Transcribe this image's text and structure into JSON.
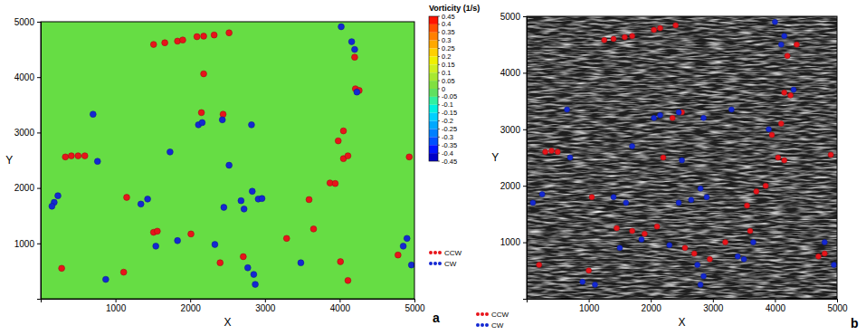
{
  "chart_data": [
    {
      "type": "scatter",
      "xlabel": "X",
      "ylabel": "Y",
      "xlim": [
        0,
        5000
      ],
      "ylim": [
        0,
        5000
      ],
      "xticks": [
        1000,
        2000,
        3000,
        4000,
        5000
      ],
      "yticks": [
        1000,
        2000,
        3000,
        4000,
        5000
      ],
      "legend": "right",
      "annotations": [
        "a"
      ],
      "colorbar": {
        "title": "Vorticity (1/s)",
        "range": [
          -0.45,
          0.45
        ],
        "ticks": [
          0.45,
          0.4,
          0.35,
          0.3,
          0.25,
          0.2,
          0.15,
          0.1,
          0.05,
          0,
          -0.05,
          -0.1,
          -0.15,
          -0.2,
          -0.25,
          -0.3,
          -0.35,
          -0.4,
          -0.45
        ],
        "colors": [
          "#ff1400",
          "#ff5000",
          "#ff8000",
          "#ffa800",
          "#ffd000",
          "#f0f000",
          "#d0f020",
          "#a8e830",
          "#80e040",
          "#60e060",
          "#30f0a0",
          "#00f0e0",
          "#00d0ff",
          "#00a8ff",
          "#0080ff",
          "#0050ff",
          "#0014ff",
          "#0000c8"
        ]
      },
      "series": [
        {
          "name": "CCW",
          "color": "#e8141a",
          "marker": "circle",
          "x": [
            1510,
            1660,
            1830,
            1900,
            2090,
            2180,
            2320,
            2520,
            2180,
            2150,
            2440,
            330,
            410,
            500,
            590,
            1150,
            1510,
            1560,
            2010,
            1110,
            280,
            2400,
            2710,
            3290,
            3590,
            3870,
            3940,
            4050,
            4110,
            3980,
            4050,
            4210,
            4260,
            4200,
            4930,
            4780,
            3650,
            4010,
            4110
          ],
          "values": [
            4590,
            4620,
            4650,
            4670,
            4730,
            4740,
            4760,
            4800,
            4060,
            3360,
            3330,
            2560,
            2580,
            2580,
            2580,
            1830,
            1200,
            1220,
            1170,
            480,
            550,
            650,
            760,
            1090,
            1790,
            2090,
            2080,
            2530,
            2580,
            2850,
            3030,
            3790,
            3760,
            4360,
            2560,
            790,
            1260,
            670,
            330
          ]
        },
        {
          "name": "CW",
          "color": "#1428d2",
          "marker": "circle",
          "x": [
            700,
            180,
            150,
            760,
            1430,
            1340,
            1730,
            2110,
            2160,
            2430,
            2820,
            2520,
            2830,
            2910,
            2960,
            2680,
            2720,
            2450,
            2330,
            1830,
            1540,
            2770,
            2850,
            2870,
            870,
            3480,
            4020,
            4160,
            4200,
            4230,
            4960,
            4850,
            4900,
            230
          ],
          "values": [
            3330,
            1740,
            1670,
            2480,
            1800,
            1710,
            2650,
            3140,
            3180,
            3230,
            3140,
            2410,
            1940,
            1800,
            1810,
            1770,
            1620,
            1650,
            980,
            1050,
            950,
            560,
            440,
            260,
            350,
            650,
            4910,
            4640,
            4500,
            3730,
            610,
            950,
            1090,
            1860
          ]
        }
      ]
    },
    {
      "type": "scatter",
      "xlabel": "X",
      "ylabel": "Y",
      "xlim": [
        0,
        5000
      ],
      "ylim": [
        0,
        5000
      ],
      "xticks": [
        1000,
        2000,
        3000,
        4000,
        5000
      ],
      "yticks": [
        1000,
        2000,
        3000,
        4000,
        5000
      ],
      "legend": "lower left",
      "annotations": [
        "b"
      ],
      "series": [
        {
          "name": "CCW",
          "color": "#e8141a",
          "marker": "circle",
          "x": [
            1250,
            1400,
            1580,
            1700,
            2050,
            2150,
            2400,
            2500,
            2350,
            2200,
            300,
            400,
            500,
            1050,
            1450,
            1700,
            1900,
            2100,
            200,
            1000,
            2550,
            2700,
            2950,
            3550,
            3700,
            3850,
            4050,
            4150,
            3950,
            4100,
            4150,
            4250,
            4200,
            4350,
            4900,
            4700,
            4800,
            3600,
            3200
          ],
          "values": [
            4580,
            4600,
            4630,
            4650,
            4760,
            4790,
            4840,
            3300,
            3200,
            2500,
            2600,
            2620,
            2600,
            1800,
            1250,
            1200,
            1150,
            1280,
            600,
            500,
            900,
            800,
            700,
            1650,
            1900,
            2000,
            2500,
            2450,
            2900,
            3100,
            3650,
            3600,
            4300,
            4500,
            2550,
            750,
            800,
            1200,
            1000
          ]
        },
        {
          "name": "CW",
          "color": "#1428d2",
          "marker": "circle",
          "x": [
            650,
            100,
            250,
            700,
            1400,
            1600,
            1700,
            2050,
            2150,
            2450,
            2850,
            2500,
            2800,
            2900,
            2650,
            2450,
            2300,
            1850,
            1500,
            2750,
            2850,
            2800,
            900,
            3500,
            3400,
            4000,
            4150,
            4100,
            4300,
            4950,
            4800,
            3900,
            3300,
            3650,
            1100
          ],
          "values": [
            3350,
            1700,
            1850,
            2500,
            1800,
            1700,
            2700,
            3200,
            3250,
            3300,
            3200,
            2450,
            1950,
            1800,
            1750,
            1700,
            950,
            1050,
            900,
            600,
            400,
            250,
            300,
            700,
            750,
            4900,
            4650,
            4500,
            3700,
            600,
            1000,
            3000,
            3350,
            1000,
            250
          ]
        }
      ]
    }
  ]
}
